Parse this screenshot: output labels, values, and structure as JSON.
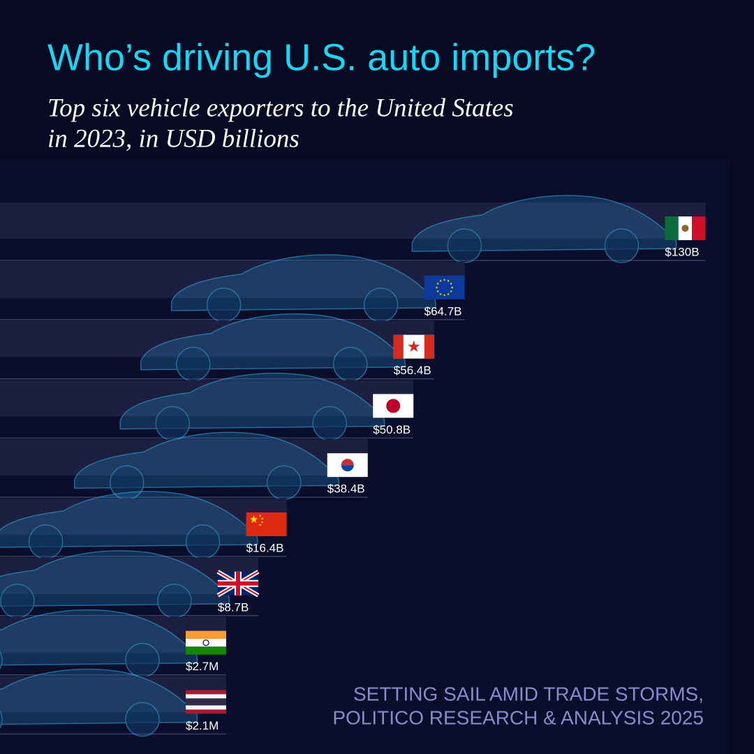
{
  "chart_data": {
    "type": "bar",
    "orientation": "horizontal",
    "title": "Who’s driving U.S. auto imports?",
    "subtitle": [
      "Top six vehicle exporters to the United States",
      "in 2023, in USD billions"
    ],
    "values": [
      130,
      64.7,
      56.4,
      50.8,
      38.4,
      16.4,
      8.7,
      0.0027,
      0.0021
    ],
    "value_labels": [
      "$130B",
      "$64.7B",
      "$56.4B",
      "$50.8B",
      "$38.4B",
      "$16.4B",
      "$8.7B",
      "$2.7M",
      "$2.1M"
    ],
    "color": "#1c1f3f",
    "source": [
      "SETTING SAIL AMID TRADE STORMS,",
      "POLITICO RESEARCH & ANALYSIS 2025"
    ]
  }
}
